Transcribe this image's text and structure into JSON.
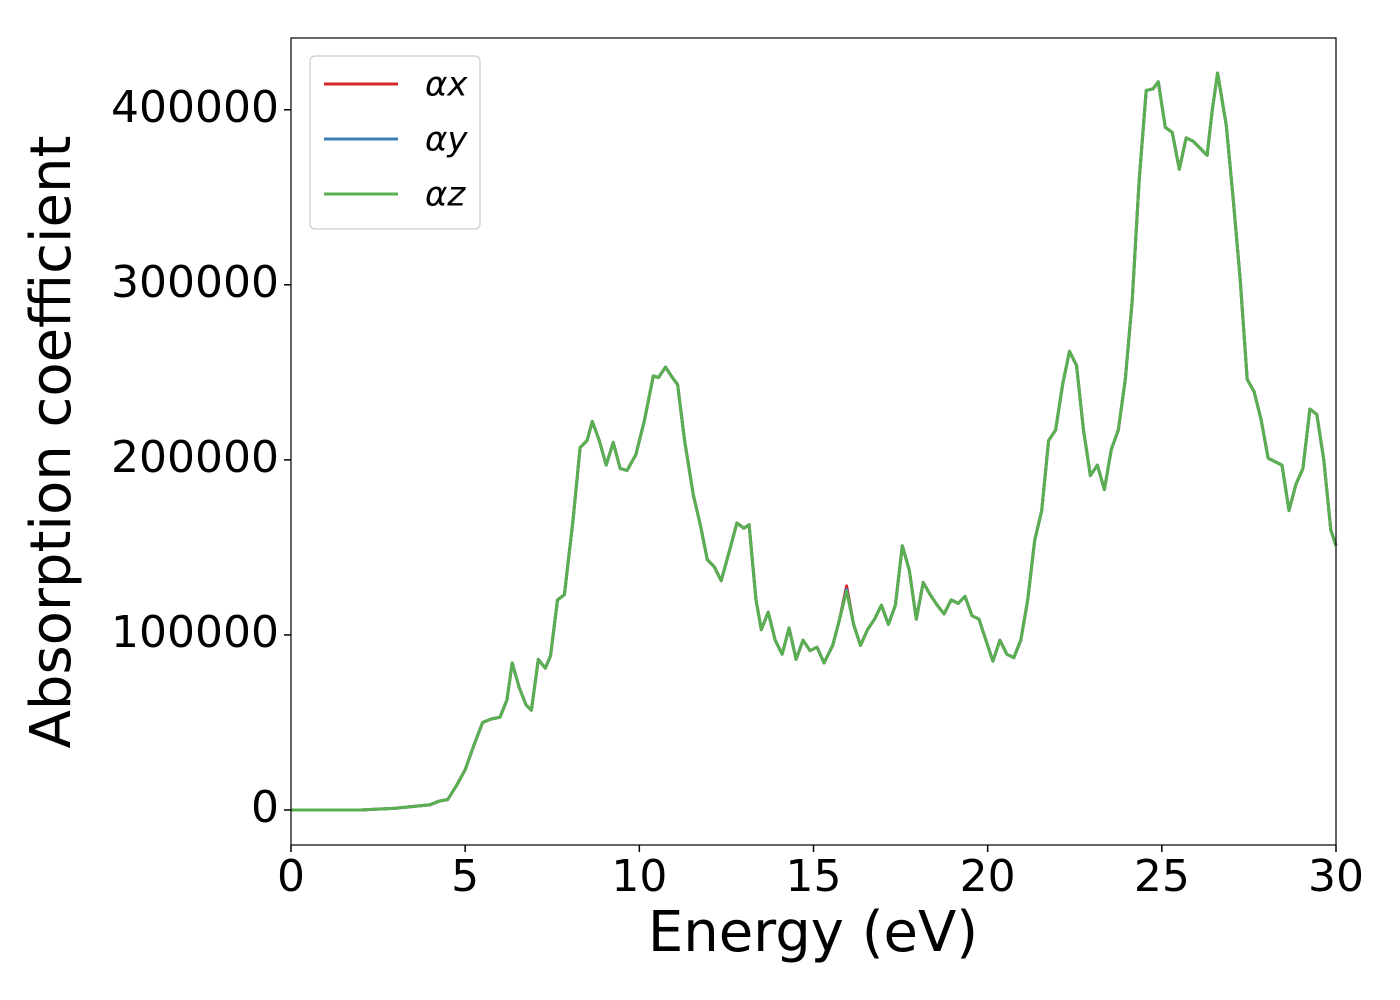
{
  "chart_data": {
    "type": "line",
    "xlabel": "Energy (eV)",
    "ylabel": "Absorption coefficient",
    "x": [
      0,
      2,
      3,
      4,
      4.25,
      4.5,
      4.75,
      5.0,
      5.25,
      5.5,
      5.75,
      6.0,
      6.2,
      6.35,
      6.55,
      6.75,
      6.9,
      7.1,
      7.3,
      7.45,
      7.65,
      7.85,
      8.1,
      8.3,
      8.5,
      8.65,
      8.85,
      9.05,
      9.25,
      9.45,
      9.65,
      9.9,
      10.15,
      10.4,
      10.55,
      10.75,
      10.95,
      11.1,
      11.3,
      11.55,
      11.75,
      11.95,
      12.15,
      12.35,
      12.6,
      12.8,
      13.0,
      13.15,
      13.35,
      13.5,
      13.7,
      13.9,
      14.1,
      14.3,
      14.5,
      14.7,
      14.9,
      15.1,
      15.3,
      15.55,
      15.75,
      15.95,
      16.15,
      16.35,
      16.55,
      16.75,
      16.95,
      17.15,
      17.35,
      17.55,
      17.75,
      17.95,
      18.15,
      18.35,
      18.55,
      18.75,
      18.95,
      19.15,
      19.35,
      19.55,
      19.75,
      19.95,
      20.15,
      20.35,
      20.55,
      20.75,
      20.95,
      21.15,
      21.35,
      21.55,
      21.75,
      21.95,
      22.15,
      22.35,
      22.55,
      22.75,
      22.95,
      23.15,
      23.35,
      23.55,
      23.75,
      23.95,
      24.15,
      24.35,
      24.55,
      24.75,
      24.9,
      25.1,
      25.3,
      25.5,
      25.7,
      25.9,
      26.1,
      26.3,
      26.45,
      26.6,
      26.85,
      27.05,
      27.25,
      27.45,
      27.65,
      27.85,
      28.05,
      28.25,
      28.45,
      28.65,
      28.85,
      29.05,
      29.25,
      29.45,
      29.65,
      29.85,
      30
    ],
    "series": [
      {
        "name": "αx",
        "color": "#d62728",
        "values": [
          0,
          0,
          1000,
          3000,
          5000,
          6000,
          14000,
          23000,
          37000,
          50000,
          52000,
          53000,
          63000,
          84000,
          70000,
          60000,
          57000,
          86000,
          81000,
          88000,
          120000,
          123000,
          166000,
          207000,
          211000,
          222000,
          211000,
          197000,
          210000,
          195000,
          194000,
          203000,
          223000,
          248000,
          247000,
          253000,
          247000,
          243000,
          211000,
          180000,
          163000,
          143000,
          139000,
          131000,
          149000,
          164000,
          161000,
          163000,
          120000,
          103000,
          113000,
          97000,
          89000,
          104000,
          86000,
          97000,
          91000,
          93000,
          84000,
          94000,
          109000,
          128000,
          106000,
          94000,
          103000,
          109000,
          117000,
          106000,
          117000,
          151000,
          137000,
          109000,
          130000,
          123000,
          117000,
          112000,
          120000,
          118000,
          122000,
          111000,
          109000,
          97000,
          85000,
          97000,
          89000,
          87000,
          97000,
          120000,
          154000,
          171000,
          211000,
          217000,
          243000,
          262000,
          254000,
          217000,
          191000,
          197000,
          183000,
          206000,
          217000,
          246000,
          291000,
          360000,
          411000,
          412000,
          416000,
          390000,
          387000,
          366000,
          384000,
          382000,
          378000,
          374000,
          400000,
          421000,
          391000,
          349000,
          303000,
          246000,
          239000,
          223000,
          201000,
          199000,
          197000,
          171000,
          186000,
          195000,
          229000,
          226000,
          200000,
          160000,
          151000
        ]
      },
      {
        "name": "αy",
        "color": "#3a7fb8",
        "values": [
          0,
          0,
          1000,
          3000,
          5000,
          6000,
          14000,
          23000,
          37000,
          50000,
          52000,
          53000,
          63000,
          84000,
          70000,
          60000,
          57000,
          86000,
          81000,
          88000,
          120000,
          123000,
          166000,
          207000,
          211000,
          222000,
          211000,
          197000,
          210000,
          195000,
          194000,
          203000,
          223000,
          248000,
          247000,
          253000,
          247000,
          243000,
          211000,
          180000,
          163000,
          143000,
          139000,
          131000,
          149000,
          164000,
          161000,
          163000,
          120000,
          103000,
          113000,
          97000,
          89000,
          104000,
          86000,
          97000,
          91000,
          93000,
          84000,
          94000,
          109000,
          126000,
          106000,
          94000,
          103000,
          109000,
          117000,
          106000,
          117000,
          151000,
          137000,
          109000,
          130000,
          123000,
          117000,
          112000,
          120000,
          118000,
          122000,
          111000,
          109000,
          97000,
          85000,
          97000,
          89000,
          87000,
          97000,
          120000,
          154000,
          171000,
          211000,
          217000,
          243000,
          262000,
          254000,
          217000,
          191000,
          197000,
          183000,
          206000,
          217000,
          246000,
          291000,
          360000,
          411000,
          412000,
          416000,
          390000,
          387000,
          366000,
          384000,
          382000,
          378000,
          374000,
          400000,
          421000,
          391000,
          349000,
          303000,
          246000,
          239000,
          223000,
          201000,
          199000,
          197000,
          171000,
          186000,
          195000,
          229000,
          226000,
          200000,
          160000,
          151000
        ]
      },
      {
        "name": "αz",
        "color": "#5aaf50",
        "values": [
          0,
          0,
          1000,
          3000,
          5000,
          6000,
          14000,
          23000,
          37000,
          50000,
          52000,
          53000,
          63000,
          84000,
          70000,
          60000,
          57000,
          86000,
          81000,
          88000,
          120000,
          123000,
          166000,
          207000,
          211000,
          222000,
          211000,
          197000,
          210000,
          195000,
          194000,
          203000,
          223000,
          248000,
          247000,
          253000,
          247000,
          243000,
          211000,
          180000,
          163000,
          143000,
          139000,
          131000,
          149000,
          164000,
          161000,
          163000,
          120000,
          103000,
          113000,
          97000,
          89000,
          104000,
          86000,
          97000,
          91000,
          93000,
          84000,
          94000,
          109000,
          125000,
          106000,
          94000,
          103000,
          109000,
          117000,
          106000,
          117000,
          151000,
          137000,
          109000,
          130000,
          123000,
          117000,
          112000,
          120000,
          118000,
          122000,
          111000,
          109000,
          97000,
          85000,
          97000,
          89000,
          87000,
          97000,
          120000,
          154000,
          171000,
          211000,
          217000,
          243000,
          262000,
          254000,
          217000,
          191000,
          197000,
          183000,
          206000,
          217000,
          246000,
          291000,
          360000,
          411000,
          412000,
          416000,
          390000,
          387000,
          366000,
          384000,
          382000,
          378000,
          374000,
          400000,
          421000,
          391000,
          349000,
          303000,
          246000,
          239000,
          223000,
          201000,
          199000,
          197000,
          171000,
          186000,
          195000,
          229000,
          226000,
          200000,
          160000,
          151000
        ]
      }
    ],
    "xlim": [
      0,
      30
    ],
    "xticks": [
      0,
      5,
      10,
      15,
      20,
      25,
      30
    ],
    "ylim": [
      -20000,
      441000
    ],
    "yticks": [
      0,
      100000,
      200000,
      300000,
      400000
    ],
    "grid": false,
    "legend": "upper left"
  }
}
